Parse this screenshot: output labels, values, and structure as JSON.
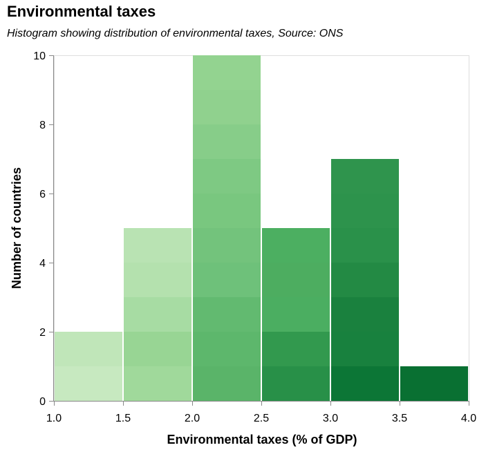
{
  "chart_data": {
    "type": "bar",
    "title": "Environmental taxes",
    "subtitle": "Histogram showing distribution of environmental taxes, Source: ONS",
    "xlabel": "Environmental taxes (% of GDP)",
    "ylabel": "Number of countries",
    "bins": [
      {
        "x0": 1.0,
        "x1": 1.5,
        "count": 2,
        "stack": [
          "#c7e9c0",
          "#c0e6b9"
        ]
      },
      {
        "x0": 1.5,
        "x1": 2.0,
        "count": 5,
        "stack": [
          "#a0d99b",
          "#98d594",
          "#a7dca3",
          "#b4e1ae",
          "#b9e3b3"
        ]
      },
      {
        "x0": 2.0,
        "x1": 2.5,
        "count": 10,
        "stack": [
          "#5ab469",
          "#5db76c",
          "#62ba70",
          "#6ec17a",
          "#73c37c",
          "#79c77f",
          "#7ec983",
          "#87cd89",
          "#90d18e",
          "#93d390"
        ]
      },
      {
        "x0": 2.5,
        "x1": 3.0,
        "count": 5,
        "stack": [
          "#289048",
          "#32994e",
          "#4bae61",
          "#4dad60",
          "#4caf61"
        ]
      },
      {
        "x0": 3.0,
        "x1": 3.5,
        "count": 7,
        "stack": [
          "#0c7636",
          "#18813e",
          "#1a813e",
          "#238a44",
          "#2a914a",
          "#2d934c",
          "#2f944d"
        ]
      },
      {
        "x0": 3.5,
        "x1": 4.0,
        "count": 1,
        "stack": [
          "#097032"
        ]
      }
    ],
    "xticks": [
      "1.0",
      "1.5",
      "2.0",
      "2.5",
      "3.0",
      "3.5",
      "4.0"
    ],
    "yticks": [
      "0",
      "2",
      "4",
      "6",
      "8",
      "10"
    ],
    "xlim": [
      1.0,
      4.0
    ],
    "ylim": [
      0,
      10
    ],
    "grid": false
  }
}
